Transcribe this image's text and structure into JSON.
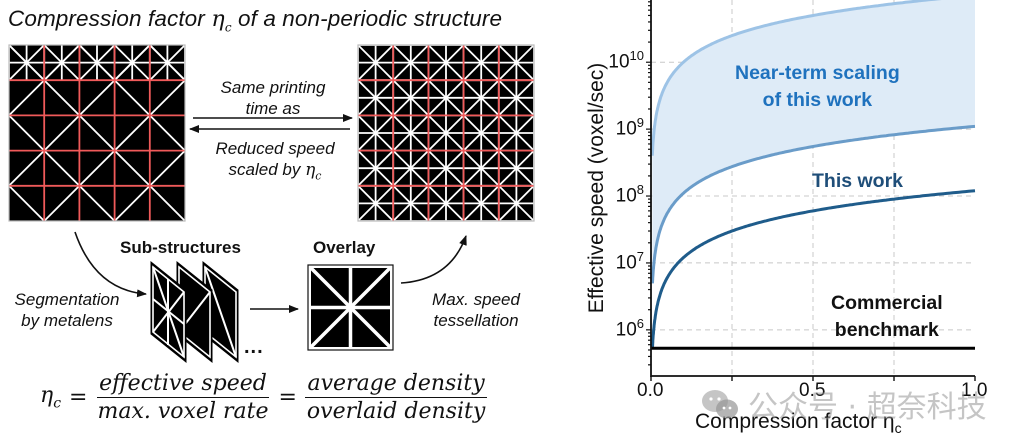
{
  "left_panel": {
    "title_prefix": "Compression factor ",
    "title_eta": "η",
    "title_sub": "c",
    "title_suffix": " of a non-periodic structure",
    "arrow_top_text_line1": "Same printing",
    "arrow_top_text_line2": "time as",
    "arrow_bottom_text_line1": "Reduced speed",
    "arrow_bottom_text_line2": "scaled by ",
    "arrow_bottom_eta": "η",
    "arrow_bottom_sub": "c",
    "substructures_label": "Sub-structures",
    "overlay_label": "Overlay",
    "segmentation_line1": "Segmentation",
    "segmentation_line2": "by metalens",
    "tessellation_line1": "Max. speed",
    "tessellation_line2": "tessellation",
    "ellipsis": "...",
    "colors": {
      "structure_bg": "#000000",
      "lattice_line": "#ffffff",
      "grid_line": "#f05a5a"
    }
  },
  "formula": {
    "lhs": "η",
    "lhs_sub": "c",
    "equals": "=",
    "frac1_num": "effective speed",
    "frac1_den": "max. voxel rate",
    "frac2_num": "average density",
    "frac2_den": "overlaid density"
  },
  "watermark": {
    "text": "公众号 · 超奈科技",
    "icon": "wechat-icon"
  },
  "chart_data": {
    "type": "line",
    "title": "",
    "xlabel": "Compression factor η",
    "xlabel_sub": "c",
    "ylabel": "Effective speed (voxel/sec)",
    "yscale": "log",
    "xlim": [
      0.0,
      1.0
    ],
    "ylim_log10": [
      5.31,
      10.93
    ],
    "x_ticks": [
      0.0,
      0.5,
      1.0
    ],
    "x_tick_labels": [
      "0.0",
      "0.5",
      "1.0"
    ],
    "x_gridlines": [
      0.25,
      0.5,
      0.75
    ],
    "y_ticks_log10": [
      6,
      7,
      8,
      9,
      10
    ],
    "y_tick_labels": [
      {
        "base": "10",
        "exp": "6"
      },
      {
        "base": "10",
        "exp": "7"
      },
      {
        "base": "10",
        "exp": "8"
      },
      {
        "base": "10",
        "exp": "9"
      },
      {
        "base": "10",
        "exp": "10"
      }
    ],
    "grid": true,
    "series": [
      {
        "name": "Near-term scaling upper bound",
        "model": "linear",
        "value_at_1": 100000000000.0,
        "x_start": 0.004,
        "color": "#9DC3E6"
      },
      {
        "name": "Near-term scaling lower bound",
        "model": "linear",
        "value_at_1": 1100000000.0,
        "x_start": 0.0045,
        "color": "#6A9CC9"
      },
      {
        "name": "This work",
        "model": "linear",
        "value_at_1": 120000000.0,
        "x_start": 0.0046,
        "color": "#1F5C8B"
      },
      {
        "name": "Commercial benchmark",
        "model": "constant",
        "value": 530000.0,
        "color": "#000000"
      }
    ],
    "shaded_region": {
      "between": [
        "Near-term scaling upper bound",
        "Near-term scaling lower bound"
      ],
      "color": "#DEEBF7"
    },
    "annotations": [
      {
        "text_line1": "Near-term scaling",
        "text_line2": "of this work",
        "color": "#1F72BE"
      },
      {
        "text_line1": "This work",
        "color": "#1F4E79"
      },
      {
        "text_line1": "Commercial",
        "text_line2": "benchmark",
        "color": "#111111"
      }
    ]
  }
}
